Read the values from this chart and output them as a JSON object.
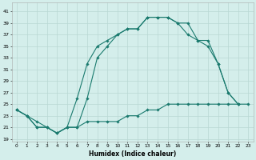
{
  "xlabel": "Humidex (Indice chaleur)",
  "bg_color": "#d4eeeb",
  "grid_color": "#b8d8d4",
  "line_color": "#1a7a6e",
  "x_ticks": [
    0,
    1,
    2,
    3,
    4,
    5,
    6,
    7,
    8,
    9,
    10,
    11,
    12,
    13,
    14,
    15,
    16,
    17,
    18,
    19,
    20,
    21,
    22,
    23
  ],
  "y_ticks": [
    19,
    21,
    23,
    25,
    27,
    29,
    31,
    33,
    35,
    37,
    39,
    41
  ],
  "ylim": [
    18.5,
    42.5
  ],
  "xlim": [
    -0.5,
    23.5
  ],
  "line1_x": [
    0,
    1,
    2,
    3,
    4,
    5,
    6,
    7,
    8,
    9,
    10,
    11,
    12,
    13,
    14,
    15,
    16,
    17,
    18,
    19,
    20,
    21,
    22
  ],
  "line1_y": [
    24,
    23,
    21,
    21,
    20,
    21,
    21,
    26,
    33,
    35,
    37,
    38,
    38,
    40,
    40,
    40,
    39,
    39,
    36,
    36,
    32,
    27,
    25
  ],
  "line2_x": [
    0,
    1,
    2,
    3,
    4,
    5,
    6,
    7,
    8,
    9,
    10,
    11,
    12,
    13,
    14,
    15,
    16,
    17,
    18,
    19,
    20,
    21,
    22
  ],
  "line2_y": [
    24,
    23,
    21,
    21,
    20,
    21,
    26,
    32,
    35,
    36,
    37,
    38,
    38,
    40,
    40,
    40,
    39,
    37,
    36,
    35,
    32,
    27,
    25
  ],
  "line3_x": [
    0,
    1,
    2,
    3,
    4,
    5,
    6,
    7,
    8,
    9,
    10,
    11,
    12,
    13,
    14,
    15,
    16,
    17,
    18,
    19,
    20,
    21,
    22,
    23
  ],
  "line3_y": [
    24,
    23,
    22,
    21,
    20,
    21,
    21,
    22,
    22,
    22,
    22,
    23,
    23,
    24,
    24,
    25,
    25,
    25,
    25,
    25,
    25,
    25,
    25,
    25
  ]
}
